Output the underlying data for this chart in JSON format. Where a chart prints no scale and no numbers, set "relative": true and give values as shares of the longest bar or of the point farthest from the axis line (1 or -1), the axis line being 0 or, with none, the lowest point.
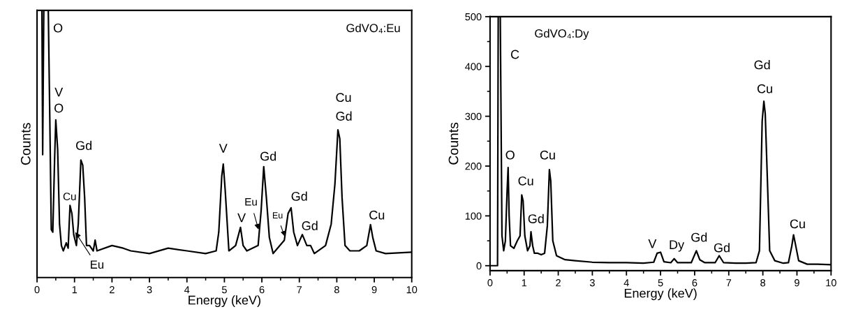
{
  "chart_data": [
    {
      "type": "line",
      "title": "GdVO₄:Eu",
      "xlabel": "Energy (keV)",
      "ylabel": "Counts",
      "relative": true,
      "xlim": [
        0,
        10
      ],
      "xticks": [
        0,
        1,
        2,
        3,
        4,
        5,
        6,
        7,
        8,
        9,
        10
      ],
      "grid": false,
      "series": [
        {
          "color": "#000000",
          "x": [
            0.13,
            0.15,
            0.18,
            0.3,
            0.34,
            0.38,
            0.42,
            0.47,
            0.5,
            0.55,
            0.6,
            0.65,
            0.7,
            0.78,
            0.83,
            0.88,
            0.93,
            0.98,
            1.05,
            1.1,
            1.17,
            1.22,
            1.27,
            1.32,
            1.4,
            1.5,
            1.55,
            1.6,
            2.0,
            2.3,
            2.5,
            3.0,
            3.5,
            4.0,
            4.5,
            4.78,
            4.85,
            4.93,
            4.97,
            5.02,
            5.12,
            5.3,
            5.43,
            5.5,
            5.6,
            5.9,
            5.98,
            6.05,
            6.12,
            6.2,
            6.3,
            6.6,
            6.7,
            6.78,
            6.85,
            6.95,
            7.08,
            7.2,
            7.3,
            7.4,
            7.7,
            7.85,
            7.95,
            8.03,
            8.08,
            8.14,
            8.22,
            8.35,
            8.6,
            8.8,
            8.9,
            8.96,
            9.05,
            9.3,
            10.0
          ],
          "values": [
            1.0,
            0.46,
            1.0,
            1.0,
            0.6,
            0.18,
            0.17,
            0.45,
            0.59,
            0.48,
            0.2,
            0.12,
            0.1,
            0.13,
            0.11,
            0.27,
            0.24,
            0.16,
            0.12,
            0.2,
            0.44,
            0.42,
            0.3,
            0.12,
            0.12,
            0.1,
            0.14,
            0.1,
            0.12,
            0.11,
            0.1,
            0.09,
            0.11,
            0.1,
            0.09,
            0.1,
            0.17,
            0.38,
            0.425,
            0.33,
            0.1,
            0.12,
            0.188,
            0.12,
            0.1,
            0.12,
            0.25,
            0.415,
            0.3,
            0.15,
            0.09,
            0.14,
            0.24,
            0.261,
            0.17,
            0.12,
            0.161,
            0.12,
            0.12,
            0.09,
            0.12,
            0.2,
            0.35,
            0.553,
            0.52,
            0.3,
            0.12,
            0.1,
            0.1,
            0.12,
            0.198,
            0.15,
            0.1,
            0.09,
            0.095
          ]
        }
      ],
      "annotations": [
        "O",
        "V",
        "O",
        "Gd",
        "Cu",
        "Eu",
        "V",
        "Gd",
        "V",
        "Eu",
        "Eu",
        "Gd",
        "Gd",
        "Cu",
        "Gd",
        "Cu"
      ]
    },
    {
      "type": "line",
      "title": "GdVO₄:Dy",
      "xlabel": "Energy (keV)",
      "ylabel": "Counts",
      "xlim": [
        0,
        10
      ],
      "xticks": [
        0,
        1,
        2,
        3,
        4,
        5,
        6,
        7,
        8,
        9,
        10
      ],
      "ylim": [
        -10,
        500
      ],
      "yticks": [
        0,
        100,
        200,
        300,
        400,
        500
      ],
      "grid": false,
      "series": [
        {
          "color": "#000000",
          "x": [
            0,
            0.22,
            0.24,
            0.3,
            0.35,
            0.4,
            0.45,
            0.5,
            0.53,
            0.56,
            0.6,
            0.7,
            0.8,
            0.88,
            0.93,
            0.97,
            1.02,
            1.1,
            1.17,
            1.2,
            1.25,
            1.3,
            1.4,
            1.5,
            1.6,
            1.68,
            1.74,
            1.78,
            1.84,
            1.95,
            2.2,
            2.5,
            3.0,
            3.5,
            4.0,
            4.5,
            4.8,
            4.9,
            5.0,
            5.1,
            5.3,
            5.4,
            5.5,
            5.9,
            6.05,
            6.15,
            6.3,
            6.6,
            6.72,
            6.85,
            7.2,
            7.5,
            7.8,
            7.9,
            7.98,
            8.03,
            8.07,
            8.12,
            8.2,
            8.35,
            8.6,
            8.75,
            8.85,
            8.9,
            8.95,
            9.05,
            9.3,
            9.6,
            10.0
          ],
          "values": [
            0,
            0,
            500,
            500,
            60,
            30,
            50,
            150,
            197,
            100,
            40,
            35,
            50,
            60,
            142,
            130,
            60,
            30,
            40,
            68,
            40,
            25,
            25,
            22,
            25,
            80,
            193,
            170,
            50,
            20,
            12,
            10,
            7,
            6,
            6,
            5,
            7,
            25,
            27,
            8,
            6,
            14,
            6,
            6,
            30,
            12,
            6,
            6,
            20,
            6,
            5,
            5,
            6,
            30,
            290,
            330,
            305,
            200,
            30,
            10,
            5,
            6,
            40,
            62,
            45,
            10,
            3,
            3,
            2
          ]
        }
      ],
      "annotations": [
        "C",
        "O",
        "Cu",
        "Gd",
        "Cu",
        "V",
        "Dy",
        "Gd",
        "Gd",
        "Gd",
        "Cu",
        "Cu"
      ]
    }
  ]
}
